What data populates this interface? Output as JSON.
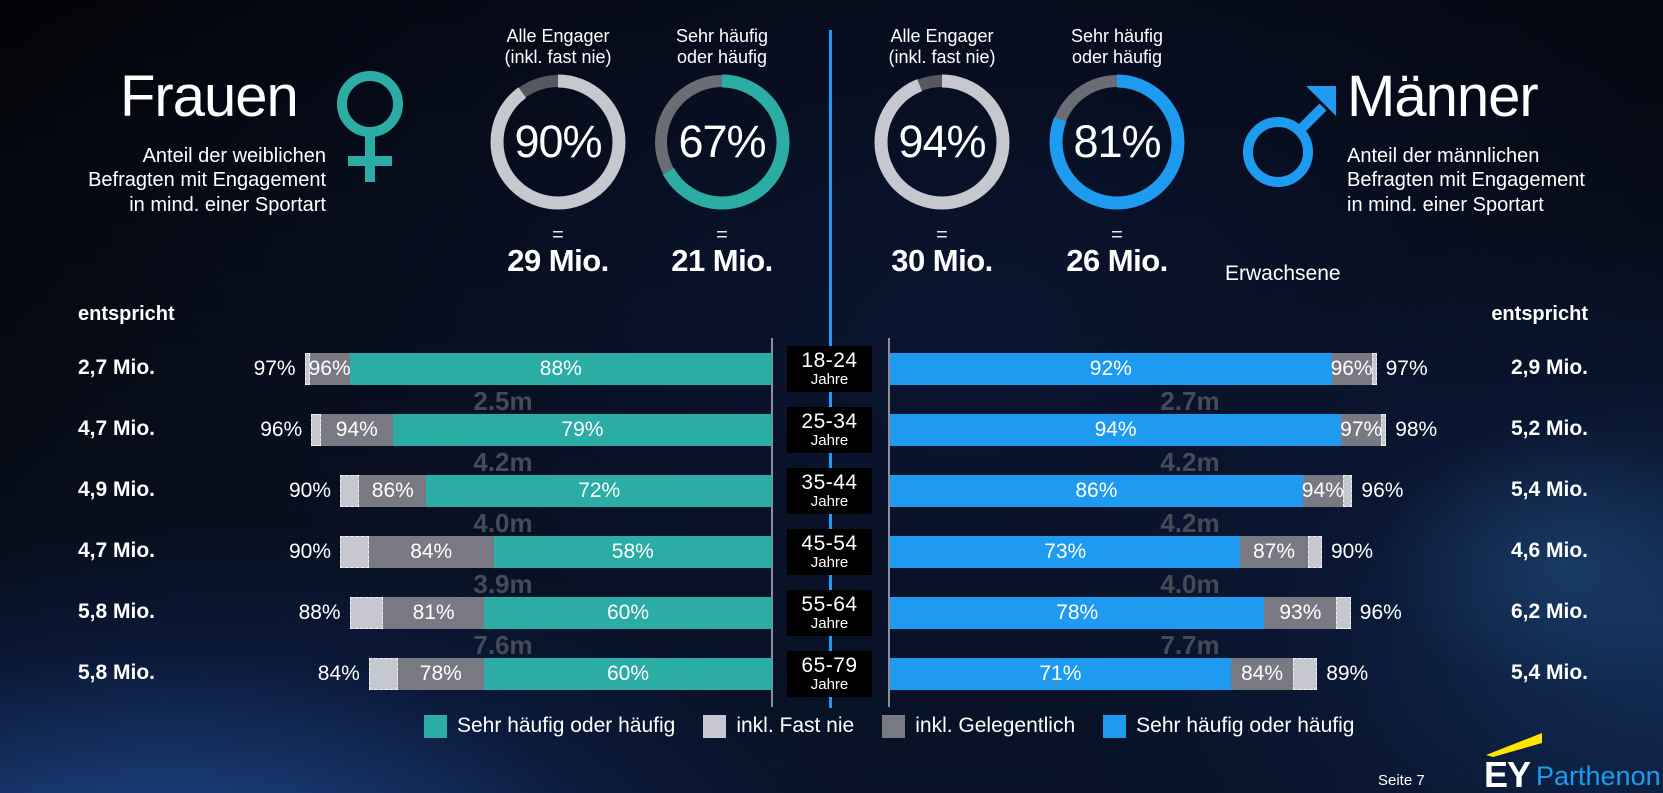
{
  "women": {
    "title": "Frauen",
    "subtitle": "Anteil der weiblichen\nBefragten mit Engagement\nin mind. einer Sportart",
    "symbol": "female",
    "color": "#2BACA4",
    "entspricht": "entspricht"
  },
  "men": {
    "title": "Männer",
    "subtitle": "Anteil der männlichen\nBefragten mit Engagement\nin mind. einer Sportart",
    "symbol": "male",
    "color": "#1E9BF0",
    "entspricht": "entspricht",
    "suffix": "Erwachsene"
  },
  "chart_data": [
    {
      "type": "pie",
      "subtype": "donut-summary",
      "donuts": [
        {
          "group": "women",
          "title_line1": "Alle Engager",
          "title_line2": "(inkl. fast nie)",
          "percent": 90,
          "label": "90%",
          "equals": "=",
          "amount": "29 Mio.",
          "fill": "#C6C7CF",
          "rest": "#57585f"
        },
        {
          "group": "women",
          "title_line1": "Sehr häufig",
          "title_line2": "oder häufig",
          "percent": 67,
          "label": "67%",
          "equals": "=",
          "amount": "21 Mio.",
          "fill": "#2BACA4",
          "rest": "#6b6d75"
        },
        {
          "group": "men",
          "title_line1": "Alle Engager",
          "title_line2": "(inkl. fast nie)",
          "percent": 94,
          "label": "94%",
          "equals": "=",
          "amount": "30 Mio.",
          "fill": "#C6C7CF",
          "rest": "#57585f"
        },
        {
          "group": "men",
          "title_line1": "Sehr häufig",
          "title_line2": "oder häufig",
          "percent": 81,
          "label": "81%",
          "equals": "=",
          "amount": "26 Mio.",
          "fill": "#1E9BF0",
          "rest": "#6b6d75"
        }
      ]
    },
    {
      "type": "bar",
      "subtype": "mirrored-cumulative",
      "unit_label": "Jahre",
      "note": "cumulative % per age band: main = Sehr häufig oder häufig, mid = inkl. Gelegentlich, total = inkl. Fast nie",
      "rows": [
        {
          "age": "18-24",
          "women": {
            "mio": "2,7 Mio.",
            "total": 97,
            "mid": 96,
            "main": 88,
            "ghost": "2.5m"
          },
          "men": {
            "mio": "2,9 Mio.",
            "total": 97,
            "mid": 96,
            "main": 92,
            "ghost": "2.7m"
          }
        },
        {
          "age": "25-34",
          "women": {
            "mio": "4,7 Mio.",
            "total": 96,
            "mid": 94,
            "main": 79,
            "ghost": "4.2m"
          },
          "men": {
            "mio": "5,2 Mio.",
            "total": 98,
            "mid": 97,
            "main": 94,
            "ghost": "4.2m"
          }
        },
        {
          "age": "35-44",
          "women": {
            "mio": "4,9 Mio.",
            "total": 90,
            "mid": 86,
            "main": 72,
            "ghost": "4.0m"
          },
          "men": {
            "mio": "5,4 Mio.",
            "total": 96,
            "mid": 94,
            "main": 86,
            "ghost": "4.2m"
          }
        },
        {
          "age": "45-54",
          "women": {
            "mio": "4,7 Mio.",
            "total": 90,
            "mid": 84,
            "main": 58,
            "ghost": "3.9m"
          },
          "men": {
            "mio": "4,6 Mio.",
            "total": 90,
            "mid": 87,
            "main": 73,
            "ghost": "4.0m"
          }
        },
        {
          "age": "55-64",
          "women": {
            "mio": "5,8 Mio.",
            "total": 88,
            "mid": 81,
            "main": 60,
            "ghost": "7.6m"
          },
          "men": {
            "mio": "6,2 Mio.",
            "total": 96,
            "mid": 93,
            "main": 78,
            "ghost": "7.7m"
          }
        },
        {
          "age": "65-79",
          "women": {
            "mio": "5,8 Mio.",
            "total": 84,
            "mid": 78,
            "main": 60,
            "ghost": ""
          },
          "men": {
            "mio": "5,4 Mio.",
            "total": 89,
            "mid": 84,
            "main": 71,
            "ghost": ""
          }
        }
      ],
      "colors": {
        "women_main": "#2BACA4",
        "men_main": "#1E9BF0",
        "mid": "#787982",
        "light": "#C6C7CF"
      }
    }
  ],
  "legend": [
    {
      "label": "Sehr häufig oder häufig",
      "color": "#2BACA4"
    },
    {
      "label": "inkl. Fast nie",
      "color": "#C6C7CF"
    },
    {
      "label": "inkl. Gelegentlich",
      "color": "#787982"
    },
    {
      "label": "Sehr häufig oder häufig",
      "color": "#1E9BF0"
    }
  ],
  "footer": {
    "page_label": "Seite 7",
    "brand": {
      "ey": "EY",
      "sub": "Parthenon"
    }
  }
}
